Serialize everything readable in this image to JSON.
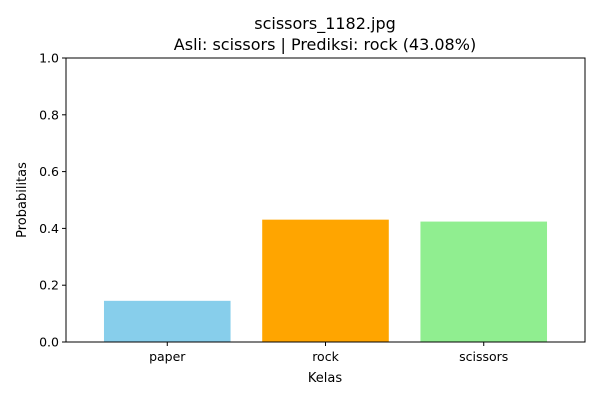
{
  "chart_data": {
    "type": "bar",
    "title": "scissors_1182.jpg",
    "subtitle": "Asli: scissors | Prediksi: rock (43.08%)",
    "xlabel": "Kelas",
    "ylabel": "Probabilitas",
    "categories": [
      "paper",
      "rock",
      "scissors"
    ],
    "values": [
      0.145,
      0.4308,
      0.424
    ],
    "colors": [
      "#87ceeb",
      "#ffa500",
      "#90ee90"
    ],
    "ylim": [
      0,
      1.0
    ],
    "yticks": [
      0.0,
      0.2,
      0.4,
      0.6,
      0.8,
      1.0
    ],
    "ytick_labels": [
      "0.0",
      "0.2",
      "0.4",
      "0.6",
      "0.8",
      "1.0"
    ],
    "grid": false,
    "legend": "none"
  }
}
